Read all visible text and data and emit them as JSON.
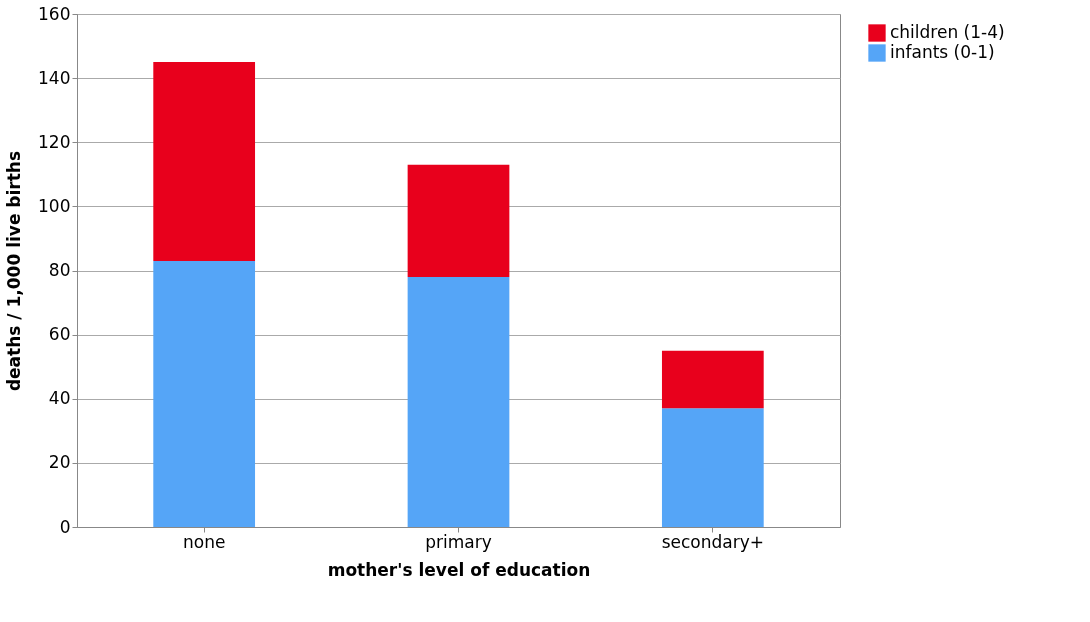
{
  "chart_data": {
    "type": "bar",
    "stacked": true,
    "xlabel": "mother's level of education",
    "ylabel": "deaths / 1,000 live births",
    "categories": [
      "none",
      "primary",
      "secondary+"
    ],
    "series": [
      {
        "name": "infants (0-1)",
        "color": "#55a5f7",
        "values": [
          83,
          78,
          37
        ]
      },
      {
        "name": "children (1-4)",
        "color": "#e8001c",
        "values": [
          62,
          35,
          18
        ]
      }
    ],
    "ylim": [
      0,
      160
    ],
    "yticks": [
      0,
      20,
      40,
      60,
      80,
      100,
      120,
      140,
      160
    ],
    "grid": "y",
    "legend": "right"
  }
}
